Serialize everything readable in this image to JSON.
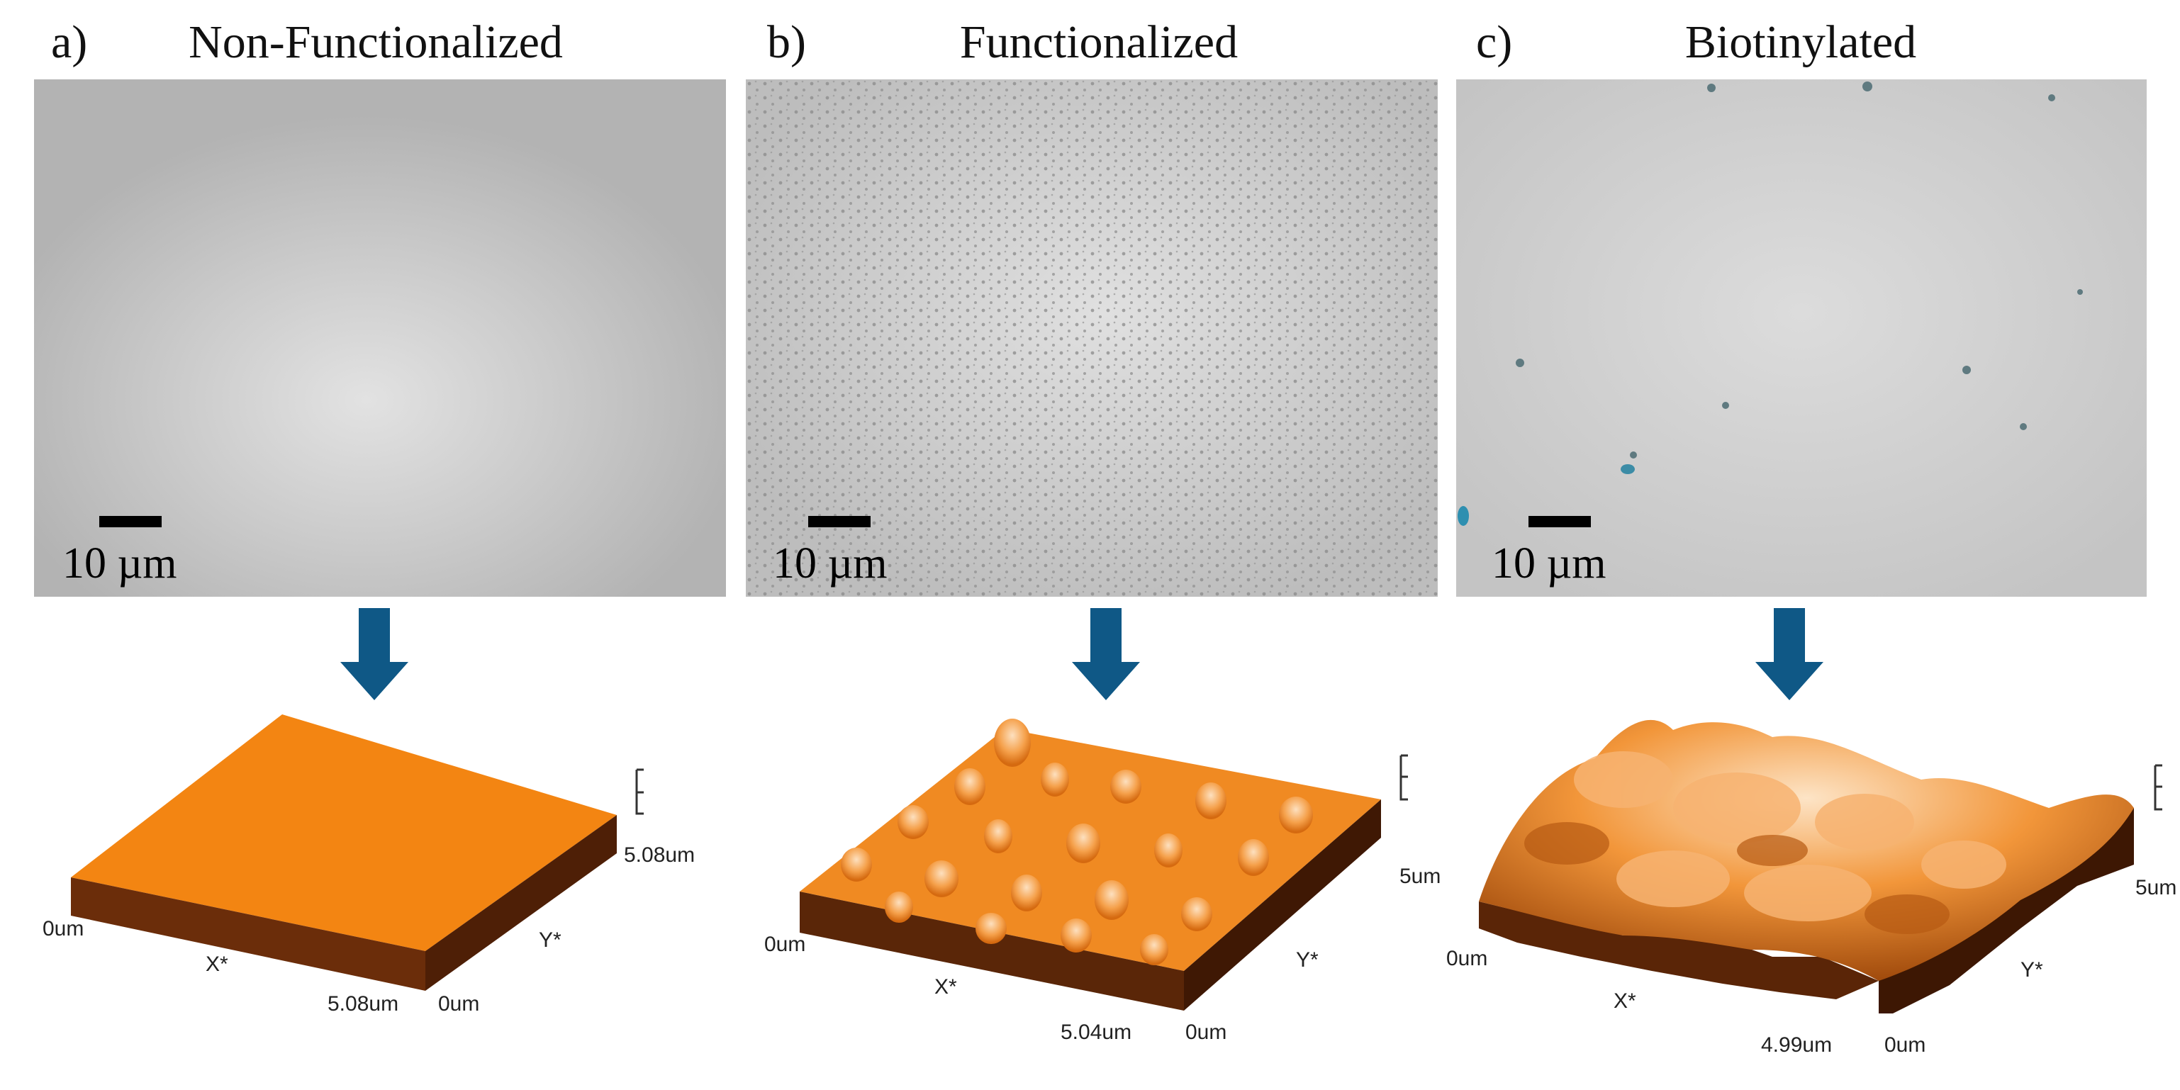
{
  "panels": [
    {
      "letter": "a)",
      "title": "Non-Functionalized",
      "scale_label": "10 µm",
      "afm": {
        "origin": "0um",
        "x_axis": "X*",
        "y_axis": "Y*",
        "x_size": "5.08um",
        "y_size": "5.08um",
        "y_origin": "0um"
      }
    },
    {
      "letter": "b)",
      "title": "Functionalized",
      "scale_label": "10 µm",
      "afm": {
        "origin": "0um",
        "x_axis": "X*",
        "y_axis": "Y*",
        "x_size": "5.04um",
        "y_size": "5um",
        "y_origin": "0um"
      }
    },
    {
      "letter": "c)",
      "title": "Biotinylated",
      "scale_label": "10 µm",
      "afm": {
        "origin": "0um",
        "x_axis": "X*",
        "y_axis": "Y*",
        "x_size": "4.99um",
        "y_size": "5um",
        "y_origin": "0um"
      }
    }
  ],
  "colors": {
    "arrow": "#0f5886",
    "afm_top": "#f38512",
    "afm_side": "#6a2e0b",
    "sem_gray": "#b9b9b9"
  },
  "icons": {
    "arrow": "down-arrow-icon"
  }
}
